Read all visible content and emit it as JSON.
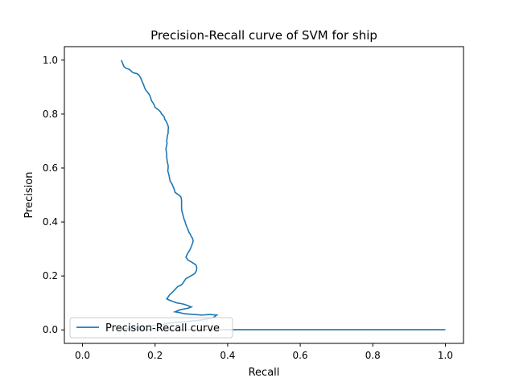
{
  "chart_data": {
    "type": "line",
    "title": "Precision-Recall curve of SVM for ship",
    "xlabel": "Recall",
    "ylabel": "Precision",
    "xlim": [
      -0.05,
      1.05
    ],
    "ylim": [
      -0.05,
      1.05
    ],
    "x_ticks": [
      0.0,
      0.2,
      0.4,
      0.6,
      0.8,
      1.0
    ],
    "x_tick_labels": [
      "0.0",
      "0.2",
      "0.4",
      "0.6",
      "0.8",
      "1.0"
    ],
    "y_ticks": [
      0.0,
      0.2,
      0.4,
      0.6,
      0.8,
      1.0
    ],
    "y_tick_labels": [
      "0.0",
      "0.2",
      "0.4",
      "0.6",
      "0.8",
      "1.0"
    ],
    "grid": false,
    "legend_position": "lower-left",
    "series": [
      {
        "name": "Precision-Recall curve",
        "color": "#1f77b4",
        "points": [
          [
            0.107,
            1.0
          ],
          [
            0.11,
            0.99
          ],
          [
            0.113,
            0.98
          ],
          [
            0.115,
            0.975
          ],
          [
            0.12,
            0.97
          ],
          [
            0.13,
            0.965
          ],
          [
            0.135,
            0.958
          ],
          [
            0.14,
            0.953
          ],
          [
            0.15,
            0.95
          ],
          [
            0.155,
            0.945
          ],
          [
            0.16,
            0.935
          ],
          [
            0.163,
            0.925
          ],
          [
            0.165,
            0.918
          ],
          [
            0.168,
            0.91
          ],
          [
            0.17,
            0.902
          ],
          [
            0.172,
            0.895
          ],
          [
            0.175,
            0.888
          ],
          [
            0.18,
            0.88
          ],
          [
            0.185,
            0.87
          ],
          [
            0.188,
            0.86
          ],
          [
            0.19,
            0.85
          ],
          [
            0.195,
            0.84
          ],
          [
            0.198,
            0.832
          ],
          [
            0.2,
            0.825
          ],
          [
            0.205,
            0.82
          ],
          [
            0.21,
            0.815
          ],
          [
            0.215,
            0.808
          ],
          [
            0.218,
            0.8
          ],
          [
            0.222,
            0.795
          ],
          [
            0.225,
            0.79
          ],
          [
            0.227,
            0.78
          ],
          [
            0.23,
            0.775
          ],
          [
            0.235,
            0.76
          ],
          [
            0.237,
            0.75
          ],
          [
            0.236,
            0.74
          ],
          [
            0.236,
            0.73
          ],
          [
            0.234,
            0.72
          ],
          [
            0.233,
            0.71
          ],
          [
            0.232,
            0.7
          ],
          [
            0.233,
            0.69
          ],
          [
            0.231,
            0.68
          ],
          [
            0.23,
            0.67
          ],
          [
            0.231,
            0.66
          ],
          [
            0.232,
            0.65
          ],
          [
            0.232,
            0.64
          ],
          [
            0.233,
            0.63
          ],
          [
            0.234,
            0.62
          ],
          [
            0.236,
            0.61
          ],
          [
            0.236,
            0.6
          ],
          [
            0.235,
            0.59
          ],
          [
            0.237,
            0.58
          ],
          [
            0.239,
            0.57
          ],
          [
            0.24,
            0.56
          ],
          [
            0.242,
            0.55
          ],
          [
            0.245,
            0.545
          ],
          [
            0.247,
            0.54
          ],
          [
            0.25,
            0.53
          ],
          [
            0.253,
            0.52
          ],
          [
            0.255,
            0.51
          ],
          [
            0.26,
            0.505
          ],
          [
            0.265,
            0.5
          ],
          [
            0.27,
            0.495
          ],
          [
            0.272,
            0.49
          ],
          [
            0.273,
            0.48
          ],
          [
            0.273,
            0.47
          ],
          [
            0.273,
            0.46
          ],
          [
            0.273,
            0.45
          ],
          [
            0.274,
            0.44
          ],
          [
            0.276,
            0.43
          ],
          [
            0.278,
            0.42
          ],
          [
            0.28,
            0.41
          ],
          [
            0.283,
            0.4
          ],
          [
            0.285,
            0.39
          ],
          [
            0.288,
            0.38
          ],
          [
            0.291,
            0.37
          ],
          [
            0.294,
            0.36
          ],
          [
            0.297,
            0.355
          ],
          [
            0.3,
            0.345
          ],
          [
            0.303,
            0.34
          ],
          [
            0.305,
            0.33
          ],
          [
            0.303,
            0.32
          ],
          [
            0.3,
            0.31
          ],
          [
            0.297,
            0.3
          ],
          [
            0.293,
            0.29
          ],
          [
            0.29,
            0.285
          ],
          [
            0.287,
            0.275
          ],
          [
            0.285,
            0.27
          ],
          [
            0.29,
            0.26
          ],
          [
            0.296,
            0.255
          ],
          [
            0.302,
            0.25
          ],
          [
            0.308,
            0.245
          ],
          [
            0.313,
            0.24
          ],
          [
            0.315,
            0.23
          ],
          [
            0.314,
            0.22
          ],
          [
            0.31,
            0.21
          ],
          [
            0.305,
            0.205
          ],
          [
            0.298,
            0.2
          ],
          [
            0.292,
            0.195
          ],
          [
            0.285,
            0.19
          ],
          [
            0.28,
            0.18
          ],
          [
            0.275,
            0.17
          ],
          [
            0.27,
            0.165
          ],
          [
            0.262,
            0.16
          ],
          [
            0.255,
            0.15
          ],
          [
            0.248,
            0.14
          ],
          [
            0.24,
            0.13
          ],
          [
            0.235,
            0.12
          ],
          [
            0.232,
            0.115
          ],
          [
            0.24,
            0.11
          ],
          [
            0.25,
            0.105
          ],
          [
            0.26,
            0.1
          ],
          [
            0.27,
            0.098
          ],
          [
            0.28,
            0.095
          ],
          [
            0.29,
            0.09
          ],
          [
            0.3,
            0.085
          ],
          [
            0.29,
            0.08
          ],
          [
            0.27,
            0.075
          ],
          [
            0.26,
            0.07
          ],
          [
            0.255,
            0.067
          ],
          [
            0.265,
            0.065
          ],
          [
            0.28,
            0.06
          ],
          [
            0.3,
            0.058
          ],
          [
            0.33,
            0.055
          ],
          [
            0.35,
            0.057
          ],
          [
            0.37,
            0.055
          ],
          [
            0.36,
            0.045
          ],
          [
            0.34,
            0.04
          ],
          [
            0.32,
            0.035
          ],
          [
            0.3,
            0.033
          ],
          [
            0.28,
            0.03
          ],
          [
            0.26,
            0.028
          ],
          [
            0.24,
            0.025
          ],
          [
            0.22,
            0.02
          ],
          [
            0.2,
            0.017
          ],
          [
            0.18,
            0.014
          ],
          [
            0.16,
            0.01
          ],
          [
            0.14,
            0.007
          ],
          [
            0.12,
            0.005
          ],
          [
            0.1,
            0.003
          ],
          [
            0.25,
            0.001
          ],
          [
            0.5,
            0.001
          ],
          [
            0.75,
            0.001
          ],
          [
            1.0,
            0.001
          ]
        ]
      }
    ]
  }
}
